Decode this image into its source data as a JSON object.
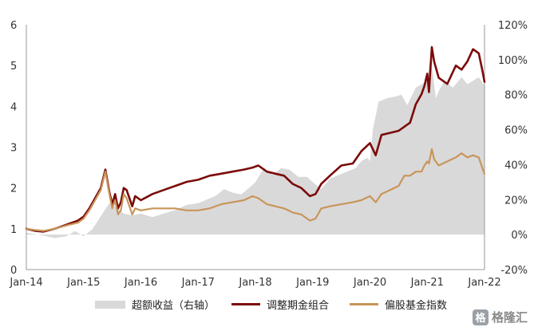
{
  "chart_data": {
    "type": "line",
    "title": "",
    "left_axis": {
      "min": 0,
      "max": 6,
      "ticks": [
        "0",
        "1",
        "2",
        "3",
        "4",
        "5",
        "6"
      ]
    },
    "right_axis": {
      "min": -20,
      "max": 120,
      "ticks": [
        "-20%",
        "0%",
        "20%",
        "40%",
        "60%",
        "80%",
        "100%",
        "120%"
      ]
    },
    "x_axis": {
      "min": 2014.0,
      "max": 2022.0,
      "tick_values": [
        2014,
        2015,
        2016,
        2017,
        2018,
        2019,
        2020,
        2021,
        2022
      ],
      "tick_labels": [
        "Jan-14",
        "Jan-15",
        "Jan-16",
        "Jan-17",
        "Jan-18",
        "Jan-19",
        "Jan-20",
        "Jan-21",
        "Jan-22"
      ]
    },
    "series": [
      {
        "name": "超额收益（右轴）",
        "kind": "area",
        "axis": "right",
        "color": "#d9d9d9",
        "x": [
          2014.0,
          2014.2,
          2014.35,
          2014.5,
          2014.7,
          2014.85,
          2015.0,
          2015.15,
          2015.25,
          2015.33,
          2015.45,
          2015.55,
          2015.7,
          2015.85,
          2016.0,
          2016.2,
          2016.4,
          2016.6,
          2016.8,
          2017.0,
          2017.15,
          2017.3,
          2017.45,
          2017.6,
          2017.75,
          2017.9,
          2018.0,
          2018.15,
          2018.3,
          2018.45,
          2018.6,
          2018.75,
          2018.9,
          2019.0,
          2019.15,
          2019.3,
          2019.45,
          2019.6,
          2019.75,
          2019.85,
          2019.95,
          2020.0,
          2020.05,
          2020.15,
          2020.3,
          2020.45,
          2020.55,
          2020.65,
          2020.8,
          2020.9,
          2021.0,
          2021.05,
          2021.1,
          2021.15,
          2021.2,
          2021.3,
          2021.45,
          2021.6,
          2021.7,
          2021.8,
          2021.9,
          2022.0
        ],
        "y": [
          1,
          0,
          -1,
          -2,
          -1,
          2,
          -1,
          3,
          8,
          12,
          18,
          16,
          12,
          11,
          12,
          10,
          12,
          14,
          17,
          18,
          20,
          22,
          26,
          24,
          23,
          27,
          30,
          38,
          34,
          38,
          37,
          33,
          33,
          30,
          26,
          32,
          34,
          36,
          38,
          42,
          44,
          42,
          60,
          76,
          78,
          79,
          80,
          74,
          84,
          86,
          88,
          100,
          92,
          78,
          82,
          88,
          84,
          90,
          86,
          88,
          90,
          85
        ]
      },
      {
        "name": "调整期金组合",
        "kind": "line",
        "axis": "left",
        "color": "#7b0a0a",
        "x": [
          2014.0,
          2014.15,
          2014.3,
          2014.5,
          2014.7,
          2014.9,
          2015.0,
          2015.1,
          2015.2,
          2015.3,
          2015.38,
          2015.45,
          2015.5,
          2015.55,
          2015.6,
          2015.65,
          2015.7,
          2015.75,
          2015.85,
          2015.9,
          2016.0,
          2016.2,
          2016.4,
          2016.6,
          2016.8,
          2017.0,
          2017.2,
          2017.4,
          2017.6,
          2017.8,
          2017.95,
          2018.05,
          2018.2,
          2018.35,
          2018.5,
          2018.65,
          2018.8,
          2018.95,
          2019.05,
          2019.15,
          2019.3,
          2019.5,
          2019.7,
          2019.85,
          2020.0,
          2020.1,
          2020.2,
          2020.35,
          2020.5,
          2020.6,
          2020.7,
          2020.8,
          2020.9,
          2020.95,
          2021.0,
          2021.03,
          2021.08,
          2021.12,
          2021.2,
          2021.35,
          2021.5,
          2021.6,
          2021.7,
          2021.8,
          2021.9,
          2021.96,
          2022.0
        ],
        "y": [
          1.0,
          0.95,
          0.93,
          1.0,
          1.1,
          1.2,
          1.3,
          1.5,
          1.75,
          2.0,
          2.45,
          1.9,
          1.6,
          1.85,
          1.5,
          1.65,
          2.0,
          1.95,
          1.55,
          1.8,
          1.7,
          1.85,
          1.95,
          2.05,
          2.15,
          2.2,
          2.3,
          2.35,
          2.4,
          2.45,
          2.5,
          2.55,
          2.4,
          2.35,
          2.3,
          2.1,
          2.0,
          1.8,
          1.85,
          2.1,
          2.3,
          2.55,
          2.6,
          2.9,
          3.1,
          2.8,
          3.3,
          3.35,
          3.4,
          3.5,
          3.6,
          4.05,
          4.3,
          4.5,
          4.8,
          4.35,
          5.45,
          5.1,
          4.7,
          4.55,
          5.0,
          4.9,
          5.1,
          5.4,
          5.3,
          4.9,
          4.6
        ]
      },
      {
        "name": "偏股基金指数",
        "kind": "line",
        "axis": "left",
        "color": "#c9955a",
        "x": [
          2014.0,
          2014.15,
          2014.3,
          2014.5,
          2014.7,
          2014.9,
          2015.0,
          2015.1,
          2015.2,
          2015.3,
          2015.38,
          2015.45,
          2015.5,
          2015.55,
          2015.6,
          2015.65,
          2015.7,
          2015.75,
          2015.85,
          2015.9,
          2016.0,
          2016.2,
          2016.4,
          2016.6,
          2016.8,
          2017.0,
          2017.2,
          2017.4,
          2017.6,
          2017.8,
          2017.95,
          2018.05,
          2018.2,
          2018.35,
          2018.5,
          2018.65,
          2018.8,
          2018.95,
          2019.05,
          2019.15,
          2019.3,
          2019.5,
          2019.7,
          2019.85,
          2020.0,
          2020.1,
          2020.2,
          2020.35,
          2020.5,
          2020.6,
          2020.7,
          2020.8,
          2020.9,
          2020.95,
          2021.0,
          2021.03,
          2021.08,
          2021.12,
          2021.2,
          2021.35,
          2021.5,
          2021.6,
          2021.7,
          2021.8,
          2021.9,
          2021.96,
          2022.0
        ],
        "y": [
          1.0,
          0.97,
          0.95,
          1.0,
          1.08,
          1.15,
          1.25,
          1.45,
          1.7,
          1.95,
          2.4,
          1.85,
          1.5,
          1.7,
          1.35,
          1.45,
          1.85,
          1.75,
          1.35,
          1.5,
          1.45,
          1.5,
          1.5,
          1.5,
          1.45,
          1.45,
          1.5,
          1.6,
          1.65,
          1.7,
          1.8,
          1.75,
          1.6,
          1.55,
          1.5,
          1.4,
          1.35,
          1.2,
          1.25,
          1.5,
          1.55,
          1.6,
          1.65,
          1.7,
          1.8,
          1.65,
          1.85,
          1.95,
          2.05,
          2.3,
          2.3,
          2.4,
          2.4,
          2.55,
          2.65,
          2.6,
          2.95,
          2.7,
          2.55,
          2.65,
          2.75,
          2.85,
          2.75,
          2.8,
          2.75,
          2.5,
          2.35
        ]
      }
    ],
    "legend": {
      "position": "bottom"
    }
  },
  "watermark": {
    "glyph": "格",
    "text": "格隆汇"
  }
}
